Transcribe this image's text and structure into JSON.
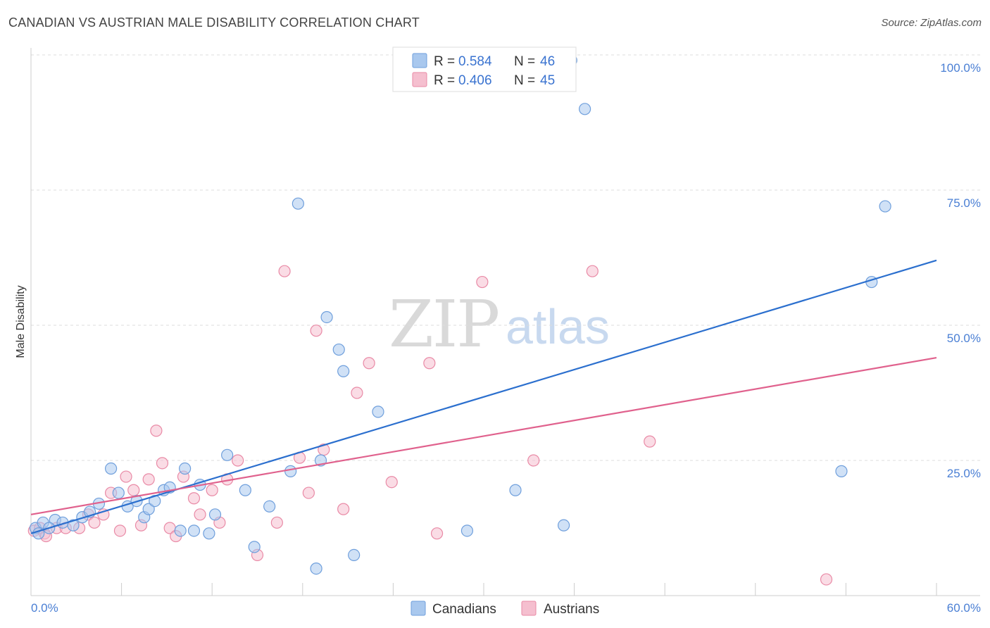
{
  "title": "CANADIAN VS AUSTRIAN MALE DISABILITY CORRELATION CHART",
  "source": "Source: ZipAtlas.com",
  "watermark": {
    "part1": "ZIP",
    "part2": "atlas"
  },
  "colors": {
    "canadians_fill": "#a9c8ee",
    "canadians_stroke": "#6f9fdc",
    "canadians_line": "#2b6fce",
    "austrians_fill": "#f5bfcf",
    "austrians_stroke": "#e98aa6",
    "austrians_line": "#e0618d",
    "grid": "#dddddd",
    "tick_label": "#4a7fd4"
  },
  "legend": {
    "rows": [
      {
        "r_label": "R =",
        "r_value": "0.584",
        "n_label": "N =",
        "n_value": "46"
      },
      {
        "r_label": "R =",
        "r_value": "0.406",
        "n_label": "N =",
        "n_value": "45"
      }
    ]
  },
  "chart_data": {
    "type": "scatter",
    "title": "CANADIAN VS AUSTRIAN MALE DISABILITY CORRELATION CHART",
    "xlabel": "",
    "ylabel": "Male Disability",
    "xlim": [
      0,
      60
    ],
    "ylim": [
      0,
      100
    ],
    "x_tick_labels": [
      "0.0%",
      "60.0%"
    ],
    "y_tick_labels": [
      "25.0%",
      "50.0%",
      "75.0%",
      "100.0%"
    ],
    "y_tick_values": [
      25,
      50,
      75,
      100
    ],
    "grid": "horizontal dashed",
    "legend_position": "top-center",
    "series": [
      {
        "name": "Canadians",
        "r": 0.584,
        "n": 46,
        "trend": [
          [
            0,
            11.5
          ],
          [
            60,
            62.0
          ]
        ],
        "points": [
          [
            0.3,
            12.5
          ],
          [
            0.8,
            13.5
          ],
          [
            1.6,
            14.0
          ],
          [
            2.1,
            13.5
          ],
          [
            2.8,
            13.0
          ],
          [
            3.4,
            14.5
          ],
          [
            3.9,
            15.5
          ],
          [
            4.5,
            17.0
          ],
          [
            5.3,
            23.5
          ],
          [
            5.8,
            19.0
          ],
          [
            6.4,
            16.5
          ],
          [
            7.0,
            17.5
          ],
          [
            7.5,
            14.5
          ],
          [
            7.8,
            16.0
          ],
          [
            8.2,
            17.5
          ],
          [
            8.8,
            19.5
          ],
          [
            9.2,
            20.0
          ],
          [
            9.9,
            12.0
          ],
          [
            10.2,
            23.5
          ],
          [
            10.8,
            12.0
          ],
          [
            11.2,
            20.5
          ],
          [
            11.8,
            11.5
          ],
          [
            12.2,
            15.0
          ],
          [
            13.0,
            26.0
          ],
          [
            14.2,
            19.5
          ],
          [
            14.8,
            9.0
          ],
          [
            15.8,
            16.5
          ],
          [
            17.2,
            23.0
          ],
          [
            17.7,
            72.5
          ],
          [
            18.9,
            5.0
          ],
          [
            19.2,
            25.0
          ],
          [
            19.6,
            51.5
          ],
          [
            20.4,
            45.5
          ],
          [
            20.7,
            41.5
          ],
          [
            21.4,
            7.5
          ],
          [
            23.0,
            34.0
          ],
          [
            28.9,
            12.0
          ],
          [
            32.1,
            19.5
          ],
          [
            35.3,
            13.0
          ],
          [
            35.8,
            99.0
          ],
          [
            36.7,
            90.0
          ],
          [
            53.7,
            23.0
          ],
          [
            55.7,
            58.0
          ],
          [
            56.6,
            72.0
          ],
          [
            0.5,
            11.5
          ],
          [
            1.2,
            12.5
          ]
        ]
      },
      {
        "name": "Austrians",
        "r": 0.406,
        "n": 45,
        "trend": [
          [
            0,
            15.0
          ],
          [
            60,
            44.0
          ]
        ],
        "points": [
          [
            0.2,
            12.0
          ],
          [
            0.9,
            11.5
          ],
          [
            1.7,
            12.5
          ],
          [
            2.3,
            12.5
          ],
          [
            3.2,
            12.5
          ],
          [
            3.8,
            15.0
          ],
          [
            4.2,
            13.5
          ],
          [
            4.8,
            15.0
          ],
          [
            5.3,
            19.0
          ],
          [
            5.9,
            12.0
          ],
          [
            6.3,
            22.0
          ],
          [
            6.8,
            19.5
          ],
          [
            7.3,
            13.0
          ],
          [
            7.8,
            21.5
          ],
          [
            8.3,
            30.5
          ],
          [
            8.7,
            24.5
          ],
          [
            9.2,
            12.5
          ],
          [
            9.6,
            11.0
          ],
          [
            10.1,
            22.0
          ],
          [
            10.8,
            18.0
          ],
          [
            11.2,
            15.0
          ],
          [
            12.0,
            19.5
          ],
          [
            12.5,
            13.5
          ],
          [
            13.0,
            21.5
          ],
          [
            13.7,
            25.0
          ],
          [
            15.0,
            7.5
          ],
          [
            16.3,
            13.5
          ],
          [
            16.8,
            60.0
          ],
          [
            17.8,
            25.5
          ],
          [
            18.4,
            19.0
          ],
          [
            18.9,
            49.0
          ],
          [
            19.4,
            27.0
          ],
          [
            20.7,
            16.0
          ],
          [
            21.6,
            37.5
          ],
          [
            22.4,
            43.0
          ],
          [
            23.9,
            21.0
          ],
          [
            26.4,
            43.0
          ],
          [
            26.9,
            11.5
          ],
          [
            29.9,
            58.0
          ],
          [
            33.3,
            25.0
          ],
          [
            37.2,
            60.0
          ],
          [
            41.0,
            28.5
          ],
          [
            52.7,
            3.0
          ],
          [
            0.6,
            12.5
          ],
          [
            1.0,
            11.0
          ]
        ]
      }
    ]
  }
}
